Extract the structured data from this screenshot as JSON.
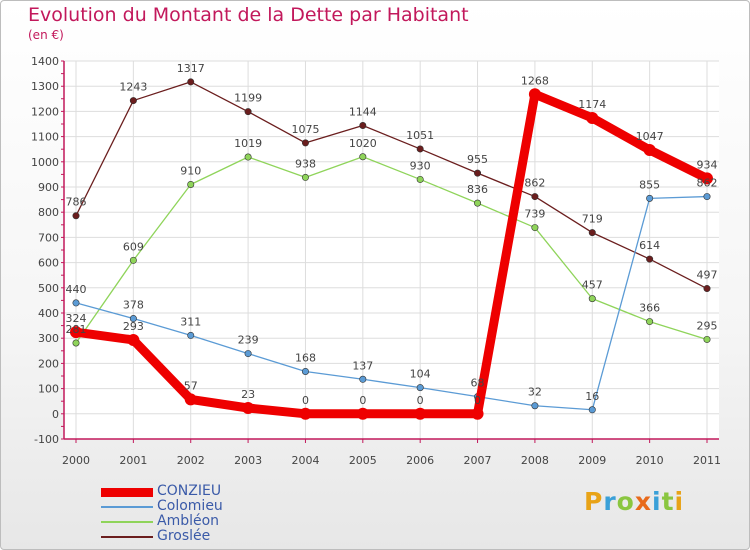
{
  "title": "Evolution du Montant de la Dette par Habitant",
  "subtitle": "(en €)",
  "logo": {
    "text": "Proxiti",
    "colors": [
      "#e8a317",
      "#3aa0d8",
      "#8ac640",
      "#e86a1b",
      "#3aa0d8",
      "#8ac640",
      "#e8a317"
    ]
  },
  "chart_data": {
    "type": "line",
    "categories": [
      "2000",
      "2001",
      "2002",
      "2003",
      "2004",
      "2005",
      "2006",
      "2007",
      "2008",
      "2009",
      "2010",
      "2011"
    ],
    "ylim": [
      -100,
      1400
    ],
    "yticks": [
      "-100",
      "0",
      "100",
      "200",
      "300",
      "400",
      "500",
      "600",
      "700",
      "800",
      "900",
      "1000",
      "1100",
      "1200",
      "1300",
      "1400"
    ],
    "grid": true,
    "legend_position": "bottom-left",
    "series": [
      {
        "name": "Groslée",
        "color": "#6b1e1e",
        "values": [
          786,
          1243,
          1317,
          1199,
          1075,
          1144,
          1051,
          955,
          862,
          719,
          614,
          497
        ],
        "labels": [
          "786",
          "1243",
          "1317",
          "1199",
          "1075",
          "1144",
          "1051",
          "955",
          "862",
          "719",
          "614",
          "497"
        ]
      },
      {
        "name": "Ambléon",
        "color": "#8fd45a",
        "values": [
          281,
          609,
          910,
          1019,
          938,
          1020,
          930,
          836,
          739,
          457,
          366,
          295
        ],
        "labels": [
          "281",
          "609",
          "910",
          "1019",
          "938",
          "1020",
          "930",
          "836",
          "739",
          "457",
          "366",
          "295"
        ]
      },
      {
        "name": "Colomieu",
        "color": "#5b9bd5",
        "values": [
          440,
          378,
          311,
          239,
          168,
          137,
          104,
          68,
          32,
          16,
          855,
          862
        ],
        "labels": [
          "440",
          "378",
          "311",
          "239",
          "168",
          "137",
          "104",
          "68",
          "32",
          "16",
          "855",
          "862"
        ]
      },
      {
        "name": "CONZIEU",
        "color": "#ee0000",
        "values": [
          324,
          293,
          57,
          23,
          0,
          0,
          0,
          0,
          1268,
          1174,
          1047,
          934
        ],
        "labels": [
          "324",
          "293",
          "57",
          "23",
          "0",
          "0",
          "0",
          "0",
          "1268",
          "1174",
          "1047",
          "934"
        ]
      }
    ],
    "legend_order": [
      "CONZIEU",
      "Colomieu",
      "Ambléon",
      "Groslée"
    ]
  }
}
